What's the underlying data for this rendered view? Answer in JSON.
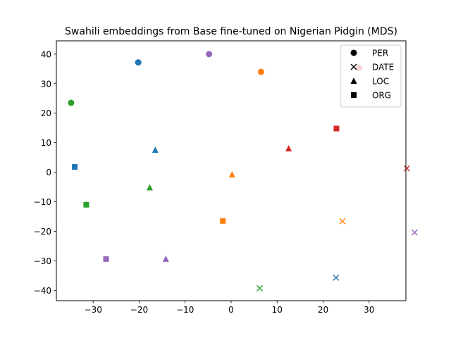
{
  "chart_data": {
    "type": "scatter",
    "title": "Swahili embeddings from Base fine-tuned on Nigerian Pidgin (MDS)",
    "xlabel": "",
    "ylabel": "",
    "xlim": [
      -38,
      38
    ],
    "ylim": [
      -43.5,
      44.5
    ],
    "xticks": [
      -30,
      -20,
      -10,
      0,
      10,
      20,
      30,
      40
    ],
    "yticks": [
      -40,
      -30,
      -20,
      -10,
      0,
      10,
      20,
      30,
      40
    ],
    "tick_labels": {
      "x": [
        "−30",
        "−20",
        "−10",
        "0",
        "10",
        "20",
        "30",
        "40"
      ],
      "y": [
        "−40",
        "−30",
        "−20",
        "−10",
        "0",
        "10",
        "20",
        "30",
        "40"
      ]
    },
    "grid": false,
    "legend": {
      "placement": "top-right",
      "entries": [
        {
          "label": "PER",
          "marker": "circle"
        },
        {
          "label": "DATE",
          "marker": "x"
        },
        {
          "label": "LOC",
          "marker": "triangle"
        },
        {
          "label": "ORG",
          "marker": "square"
        }
      ]
    },
    "colors": {
      "blue": "#1f77b4",
      "orange": "#ff7f0e",
      "green": "#2ca02c",
      "red": "#d62728",
      "purple": "#9467bd"
    },
    "points": [
      {
        "x": -20.2,
        "y": 37.2,
        "marker": "circle",
        "color": "blue"
      },
      {
        "x": 6.5,
        "y": 34.0,
        "marker": "circle",
        "color": "orange"
      },
      {
        "x": -34.8,
        "y": 23.5,
        "marker": "circle",
        "color": "green"
      },
      {
        "x": 27.8,
        "y": 35.4,
        "marker": "circle",
        "color": "red"
      },
      {
        "x": -4.8,
        "y": 40.0,
        "marker": "circle",
        "color": "purple"
      },
      {
        "x": 22.8,
        "y": -35.7,
        "marker": "x",
        "color": "blue"
      },
      {
        "x": 24.2,
        "y": -16.6,
        "marker": "x",
        "color": "orange"
      },
      {
        "x": 6.2,
        "y": -39.3,
        "marker": "x",
        "color": "green"
      },
      {
        "x": 38.2,
        "y": 1.3,
        "marker": "x",
        "color": "red"
      },
      {
        "x": 39.9,
        "y": -20.4,
        "marker": "x",
        "color": "purple"
      },
      {
        "x": -16.5,
        "y": 7.5,
        "marker": "triangle",
        "color": "blue"
      },
      {
        "x": 0.2,
        "y": -0.8,
        "marker": "triangle",
        "color": "orange"
      },
      {
        "x": -17.7,
        "y": -5.2,
        "marker": "triangle",
        "color": "green"
      },
      {
        "x": 12.5,
        "y": 8.0,
        "marker": "triangle",
        "color": "red"
      },
      {
        "x": -14.2,
        "y": -29.4,
        "marker": "triangle",
        "color": "purple"
      },
      {
        "x": -34.0,
        "y": 1.8,
        "marker": "square",
        "color": "blue"
      },
      {
        "x": -1.8,
        "y": -16.5,
        "marker": "square",
        "color": "orange"
      },
      {
        "x": -31.5,
        "y": -11.0,
        "marker": "square",
        "color": "green"
      },
      {
        "x": 22.9,
        "y": 14.8,
        "marker": "square",
        "color": "red"
      },
      {
        "x": -27.2,
        "y": -29.4,
        "marker": "square",
        "color": "purple"
      }
    ]
  }
}
